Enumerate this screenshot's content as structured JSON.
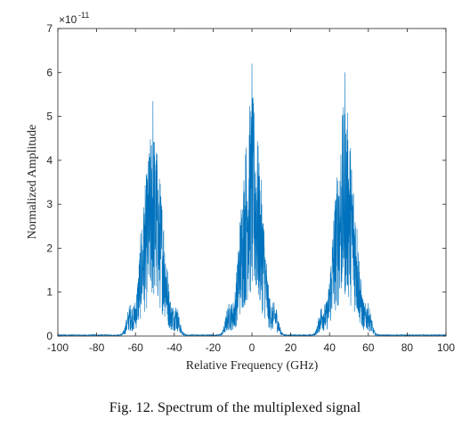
{
  "chart_data": {
    "type": "line",
    "title": "",
    "xlabel": "Relative Frequency (GHz)",
    "ylabel": "Normalized Amplitude",
    "y_exponent_label": "×10",
    "y_exponent_power": "-11",
    "xlim": [
      -100,
      100
    ],
    "ylim": [
      0,
      7
    ],
    "x_ticks": [
      -100,
      -80,
      -60,
      -40,
      -20,
      0,
      20,
      40,
      60,
      80,
      100
    ],
    "y_ticks": [
      0,
      1,
      2,
      3,
      4,
      5,
      6,
      7
    ],
    "grid": false,
    "line_color": "#0072BD",
    "series": [
      {
        "description_points": [
          {
            "x": -100,
            "y": 0.01
          },
          {
            "x": -80,
            "y": 0.2
          },
          {
            "x": -62,
            "y": 0.8
          },
          {
            "x": -51,
            "y": 5.35
          },
          {
            "x": -40,
            "y": 0.6
          },
          {
            "x": -20,
            "y": 0.5
          },
          {
            "x": 0,
            "y": 6.2
          },
          {
            "x": 20,
            "y": 0.5
          },
          {
            "x": 40,
            "y": 0.6
          },
          {
            "x": 48,
            "y": 6.0
          },
          {
            "x": 62,
            "y": 0.8
          },
          {
            "x": 80,
            "y": 0.2
          },
          {
            "x": 100,
            "y": 0.01
          }
        ]
      }
    ]
  },
  "caption": "Fig. 12.  Spectrum of the multiplexed signal"
}
